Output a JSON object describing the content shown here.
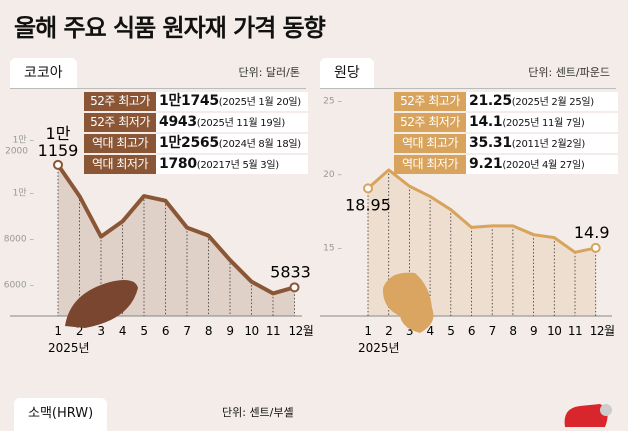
{
  "title": "올해 주요 식품 원자재 가격 동향",
  "colors": {
    "cocoa": "#8a5636",
    "sugar": "#d8a35c",
    "background": "#f3ece8"
  },
  "chart_data": [
    {
      "type": "line",
      "tab": "코코아",
      "unit": "단위: 달러/톤",
      "categories": [
        "1",
        "2",
        "3",
        "4",
        "5",
        "6",
        "7",
        "8",
        "9",
        "10",
        "11",
        "12월"
      ],
      "year_label": "2025년",
      "values": [
        11159,
        9800,
        8040,
        8700,
        9800,
        9600,
        8430,
        8080,
        7020,
        6080,
        5570,
        5833
      ],
      "ylim": [
        4500,
        12500
      ],
      "yticks": [
        {
          "v": 12000,
          "l1": "1만",
          "l2": "2000"
        },
        {
          "v": 10000,
          "l1": "1만",
          "l2": ""
        },
        {
          "v": 8000,
          "l1": "8000",
          "l2": ""
        },
        {
          "v": 6000,
          "l1": "6000",
          "l2": ""
        }
      ],
      "start_label": [
        "1만",
        "1159"
      ],
      "end_label": "5833",
      "stats": [
        {
          "label": "52주 최고가",
          "value": "1만1745",
          "date": "(2025년 1월 20일)"
        },
        {
          "label": "52주 최저가",
          "value": "4943",
          "date": "(2025년 11월 19일)"
        },
        {
          "label": "역대 최고가",
          "value": "1만2565",
          "date": "(2024년 8월 18일)"
        },
        {
          "label": "역대 최저가",
          "value": "1780",
          "date": "(20217년 5월 3일)"
        }
      ]
    },
    {
      "type": "line",
      "tab": "원당",
      "unit": "단위: 센트/파운드",
      "categories": [
        "1",
        "2",
        "3",
        "4",
        "5",
        "6",
        "7",
        "8",
        "9",
        "10",
        "11",
        "12월"
      ],
      "year_label": "2025년",
      "values": [
        18.95,
        20.2,
        19.1,
        18.4,
        17.5,
        16.3,
        16.4,
        16.4,
        15.8,
        15.6,
        14.6,
        14.9
      ],
      "ylim": [
        10,
        25.5
      ],
      "yticks": [
        {
          "v": 25,
          "l1": "25",
          "l2": ""
        },
        {
          "v": 20,
          "l1": "20",
          "l2": ""
        },
        {
          "v": 15,
          "l1": "15",
          "l2": ""
        }
      ],
      "start_label": [
        "18.95"
      ],
      "end_label": "14.9",
      "stats": [
        {
          "label": "52주 최고가",
          "value": "21.25",
          "date": "(2025년 2월 25일)"
        },
        {
          "label": "52주 최저가",
          "value": "14.1",
          "date": "(2025년 11월 7일)"
        },
        {
          "label": "역대 최고가",
          "value": "35.31",
          "date": "(2011년 2월2일)"
        },
        {
          "label": "역대 최저가",
          "value": "9.21",
          "date": "(2020년 4월 27일)"
        }
      ]
    }
  ],
  "bottom": {
    "tab": "소맥(HRW)",
    "unit": "단위: 센트/부셸"
  }
}
